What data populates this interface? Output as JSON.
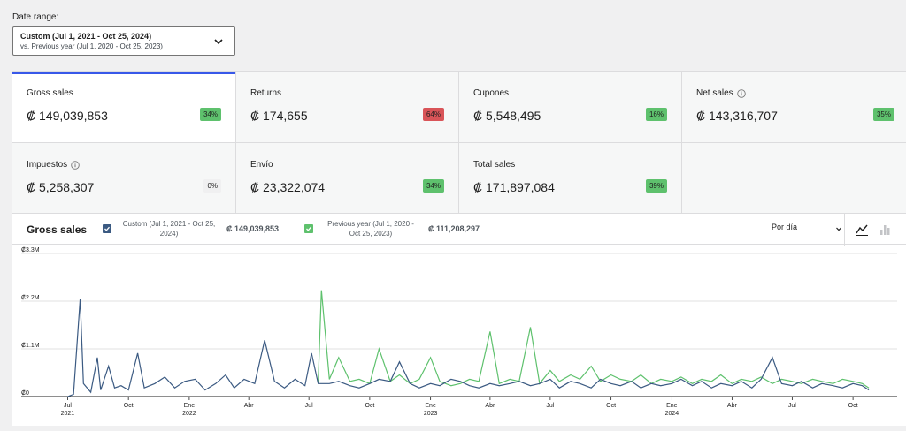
{
  "date_range": {
    "label": "Date range:",
    "primary": "Custom (Jul 1, 2021 - Oct 25, 2024)",
    "secondary": "vs. Previous year (Jul 1, 2020 - Oct 25, 2023)"
  },
  "cards": [
    {
      "label": "Gross sales",
      "value": "₡ 149,039,853",
      "change": "34%",
      "tone": "green",
      "active": true,
      "info": false
    },
    {
      "label": "Returns",
      "value": "₡ 174,655",
      "change": "64%",
      "tone": "red",
      "active": false,
      "info": false
    },
    {
      "label": "Cupones",
      "value": "₡ 5,548,495",
      "change": "16%",
      "tone": "green",
      "active": false,
      "info": false
    },
    {
      "label": "Net sales",
      "value": "₡ 143,316,707",
      "change": "35%",
      "tone": "green",
      "active": false,
      "info": true
    },
    {
      "label": "Impuestos",
      "value": "₡ 5,258,307",
      "change": "0%",
      "tone": "neutral",
      "active": false,
      "info": true
    },
    {
      "label": "Envío",
      "value": "₡ 23,322,074",
      "change": "34%",
      "tone": "green",
      "active": false,
      "info": false
    },
    {
      "label": "Total sales",
      "value": "₡ 171,897,084",
      "change": "39%",
      "tone": "green",
      "active": false,
      "info": false
    }
  ],
  "chart_header": {
    "title": "Gross sales",
    "legend": [
      {
        "label": "Custom (Jul 1, 2021 - Oct 25, 2024)",
        "total": "₡ 149,039,853",
        "color": "#3b5a82"
      },
      {
        "label": "Previous year (Jul 1, 2020 - Oct 25, 2023)",
        "total": "₡ 111,208,297",
        "color": "#5ec16d"
      }
    ],
    "interval": "Por día"
  },
  "colors": {
    "accent": "#3858e9",
    "current": "#3b5a82",
    "previous": "#5ec16d",
    "positive": "#5ec16d",
    "negative": "#d95458"
  },
  "icons": [
    "chevron-down-icon",
    "info-icon",
    "check-icon",
    "line-chart-icon",
    "bar-chart-icon"
  ],
  "chart_data": {
    "type": "line",
    "yticks": [
      "₡3.3M",
      "₡2.2M",
      "₡1.1M",
      "₡0"
    ],
    "xticks": [
      {
        "label": "Jul",
        "sub": "2021"
      },
      {
        "label": "Oct",
        "sub": ""
      },
      {
        "label": "Ene",
        "sub": "2022"
      },
      {
        "label": "Abr",
        "sub": ""
      },
      {
        "label": "Jul",
        "sub": ""
      },
      {
        "label": "Oct",
        "sub": ""
      },
      {
        "label": "Ene",
        "sub": "2023"
      },
      {
        "label": "Abr",
        "sub": ""
      },
      {
        "label": "Jul",
        "sub": ""
      },
      {
        "label": "Oct",
        "sub": ""
      },
      {
        "label": "Ene",
        "sub": "2024"
      },
      {
        "label": "Abr",
        "sub": ""
      },
      {
        "label": "Jul",
        "sub": ""
      },
      {
        "label": "Oct",
        "sub": ""
      }
    ],
    "ylim": [
      0,
      3300000
    ],
    "series": [
      {
        "name": "Custom (Jul 1, 2021 - Oct 25, 2024)",
        "color": "#3b5a82",
        "x": [
          "2021-07-01",
          "2021-07-10",
          "2021-07-20",
          "2021-07-25",
          "2021-08-05",
          "2021-08-15",
          "2021-08-20",
          "2021-09-01",
          "2021-09-10",
          "2021-09-20",
          "2021-10-01",
          "2021-10-15",
          "2021-10-25",
          "2021-11-10",
          "2021-11-25",
          "2021-12-10",
          "2021-12-25",
          "2022-01-10",
          "2022-01-25",
          "2022-02-10",
          "2022-02-25",
          "2022-03-10",
          "2022-03-25",
          "2022-04-10",
          "2022-04-25",
          "2022-05-10",
          "2022-05-25",
          "2022-06-10",
          "2022-06-25",
          "2022-07-05",
          "2022-07-15",
          "2022-08-01",
          "2022-08-15",
          "2022-09-01",
          "2022-09-15",
          "2022-10-01",
          "2022-10-15",
          "2022-11-01",
          "2022-11-15",
          "2022-12-01",
          "2022-12-15",
          "2023-01-01",
          "2023-01-15",
          "2023-02-01",
          "2023-02-15",
          "2023-03-01",
          "2023-03-15",
          "2023-04-01",
          "2023-04-15",
          "2023-05-01",
          "2023-05-15",
          "2023-06-01",
          "2023-06-15",
          "2023-07-01",
          "2023-07-15",
          "2023-08-01",
          "2023-08-15",
          "2023-09-01",
          "2023-09-15",
          "2023-10-01",
          "2023-10-15",
          "2023-11-01",
          "2023-11-15",
          "2023-12-01",
          "2023-12-15",
          "2024-01-01",
          "2024-01-15",
          "2024-02-01",
          "2024-02-15",
          "2024-03-01",
          "2024-03-15",
          "2024-04-01",
          "2024-04-15",
          "2024-05-01",
          "2024-05-15",
          "2024-06-01",
          "2024-06-15",
          "2024-07-01",
          "2024-07-15",
          "2024-08-01",
          "2024-08-15",
          "2024-09-01",
          "2024-09-15",
          "2024-10-01",
          "2024-10-15",
          "2024-10-25"
        ],
        "values": [
          0,
          50000,
          2250000,
          300000,
          100000,
          900000,
          150000,
          700000,
          200000,
          250000,
          150000,
          1000000,
          200000,
          300000,
          450000,
          200000,
          350000,
          400000,
          150000,
          300000,
          500000,
          200000,
          400000,
          300000,
          1300000,
          350000,
          200000,
          400000,
          250000,
          1000000,
          300000,
          300000,
          350000,
          250000,
          200000,
          300000,
          400000,
          350000,
          800000,
          300000,
          200000,
          300000,
          250000,
          400000,
          350000,
          250000,
          200000,
          300000,
          250000,
          300000,
          350000,
          250000,
          300000,
          400000,
          200000,
          350000,
          300000,
          200000,
          400000,
          300000,
          250000,
          350000,
          200000,
          300000,
          250000,
          300000,
          400000,
          250000,
          350000,
          200000,
          300000,
          250000,
          350000,
          200000,
          400000,
          900000,
          300000,
          250000,
          350000,
          200000,
          300000,
          250000,
          200000,
          300000,
          250000,
          150000
        ]
      },
      {
        "name": "Previous year (Jul 1, 2020 - Oct 25, 2023)",
        "color": "#5ec16d",
        "x": [
          "2022-07-15",
          "2022-07-20",
          "2022-08-01",
          "2022-08-15",
          "2022-09-01",
          "2022-09-15",
          "2022-10-01",
          "2022-10-15",
          "2022-11-01",
          "2022-11-15",
          "2022-12-01",
          "2022-12-15",
          "2023-01-01",
          "2023-01-15",
          "2023-02-01",
          "2023-02-15",
          "2023-03-01",
          "2023-03-15",
          "2023-04-01",
          "2023-04-15",
          "2023-05-01",
          "2023-05-15",
          "2023-06-01",
          "2023-06-15",
          "2023-07-01",
          "2023-07-15",
          "2023-08-01",
          "2023-08-15",
          "2023-09-01",
          "2023-09-15",
          "2023-10-01",
          "2023-10-15",
          "2023-11-01",
          "2023-11-15",
          "2023-12-01",
          "2023-12-15",
          "2024-01-01",
          "2024-01-15",
          "2024-02-01",
          "2024-02-15",
          "2024-03-01",
          "2024-03-15",
          "2024-04-01",
          "2024-04-15",
          "2024-05-01",
          "2024-05-15",
          "2024-06-01",
          "2024-06-15",
          "2024-07-01",
          "2024-07-15",
          "2024-08-01",
          "2024-08-15",
          "2024-09-01",
          "2024-09-15",
          "2024-10-01",
          "2024-10-15",
          "2024-10-25"
        ],
        "values": [
          300000,
          2450000,
          400000,
          900000,
          350000,
          400000,
          300000,
          1100000,
          350000,
          500000,
          300000,
          400000,
          900000,
          350000,
          250000,
          300000,
          400000,
          350000,
          1500000,
          300000,
          400000,
          350000,
          1600000,
          300000,
          600000,
          350000,
          500000,
          400000,
          700000,
          350000,
          500000,
          400000,
          350000,
          500000,
          300000,
          400000,
          350000,
          450000,
          300000,
          400000,
          350000,
          500000,
          300000,
          400000,
          350000,
          450000,
          300000,
          400000,
          350000,
          300000,
          400000,
          350000,
          300000,
          400000,
          350000,
          300000,
          200000
        ]
      }
    ]
  }
}
